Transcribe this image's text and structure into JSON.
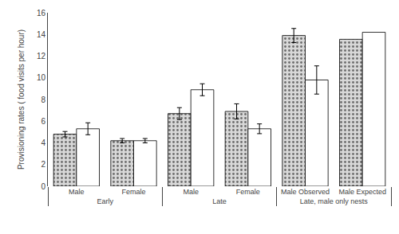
{
  "chart_data": {
    "type": "bar",
    "ylabel": "Provisioning rates ( food visits per hour)",
    "categories": [
      "Male",
      "Female",
      "Male",
      "Female",
      "Male Observed",
      "Male Expected"
    ],
    "sections": [
      "Early",
      "Early",
      "Late",
      "Late",
      "Late, male only nests",
      "Late, male only nests"
    ],
    "series": [
      {
        "color": "#d8d8d8",
        "values": [
          4.8,
          4.2,
          6.7,
          6.9,
          13.9,
          13.55
        ],
        "errors": [
          0.25,
          0.2,
          0.55,
          0.7,
          0.65,
          null
        ]
      },
      {
        "color": "#ffffff",
        "values": [
          5.3,
          4.2,
          8.9,
          5.3,
          9.8,
          14.2
        ],
        "errors": [
          0.55,
          0.2,
          0.55,
          0.45,
          1.3,
          null
        ]
      }
    ],
    "ylim": [
      0,
      16
    ],
    "yticks": [
      0,
      2,
      4,
      6,
      8,
      10,
      12,
      14,
      16
    ],
    "grid": false
  }
}
